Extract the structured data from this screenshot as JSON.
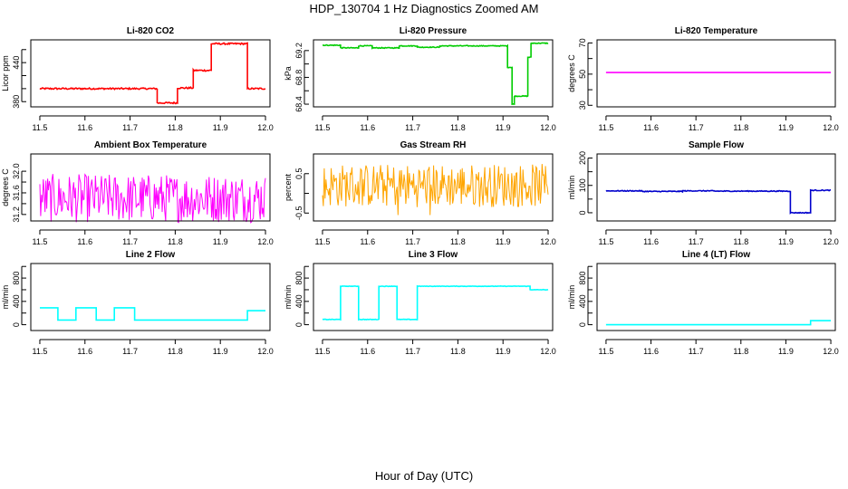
{
  "page": {
    "title": "HDP_130704  1 Hz Diagnostics Zoomed AM",
    "x_title": "Hour of Day (UTC)"
  },
  "chart_data": [
    {
      "id": "co2",
      "type": "line",
      "title": "Li-820 CO2",
      "ylabel": "Licor ppm",
      "color": "#ff0000",
      "xlim": [
        11.48,
        12.01
      ],
      "ylim": [
        372,
        475
      ],
      "x_ticks": [
        11.5,
        11.6,
        11.7,
        11.8,
        11.9,
        12.0
      ],
      "x_tick_labels": [
        "11.5",
        "11.6",
        "11.7",
        "11.8",
        "11.9",
        "12.0"
      ],
      "y_ticks": [
        380,
        400,
        420,
        440,
        460
      ],
      "y_tick_labels": [
        "380",
        "",
        "",
        "440",
        ""
      ],
      "noise": 1.2,
      "segments": [
        [
          11.5,
          11.76,
          400
        ],
        [
          11.76,
          11.805,
          378
        ],
        [
          11.805,
          11.84,
          401
        ],
        [
          11.84,
          11.88,
          428
        ],
        [
          11.88,
          11.96,
          469
        ],
        [
          11.96,
          12.0,
          400
        ]
      ]
    },
    {
      "id": "pressure",
      "type": "line",
      "title": "Li-820 Pressure",
      "ylabel": "kPa",
      "color": "#00cc00",
      "xlim": [
        11.48,
        12.01
      ],
      "ylim": [
        68.36,
        69.36
      ],
      "x_ticks": [
        11.5,
        11.6,
        11.7,
        11.8,
        11.9,
        12.0
      ],
      "x_tick_labels": [
        "11.5",
        "11.6",
        "11.7",
        "11.8",
        "11.9",
        "12.0"
      ],
      "y_ticks": [
        68.4,
        68.6,
        68.8,
        69.0,
        69.2
      ],
      "y_tick_labels": [
        "68.4",
        "",
        "68.8",
        "",
        "69.2"
      ],
      "noise": 0.006,
      "segments": [
        [
          11.5,
          11.54,
          69.28
        ],
        [
          11.54,
          11.58,
          69.24
        ],
        [
          11.58,
          11.61,
          69.27
        ],
        [
          11.61,
          11.67,
          69.24
        ],
        [
          11.67,
          11.71,
          69.27
        ],
        [
          11.71,
          11.76,
          69.25
        ],
        [
          11.76,
          11.91,
          69.27
        ],
        [
          11.91,
          11.92,
          68.95
        ],
        [
          11.92,
          11.925,
          68.4
        ],
        [
          11.925,
          11.955,
          68.52
        ],
        [
          11.955,
          11.962,
          69.1
        ],
        [
          11.962,
          12.0,
          69.31
        ]
      ]
    },
    {
      "id": "licor-temp",
      "type": "line",
      "title": "Li-820 Temperature",
      "ylabel": "degrees C",
      "color": "#ff00ff",
      "xlim": [
        11.48,
        12.01
      ],
      "ylim": [
        29,
        72
      ],
      "x_ticks": [
        11.5,
        11.6,
        11.7,
        11.8,
        11.9,
        12.0
      ],
      "x_tick_labels": [
        "11.5",
        "11.6",
        "11.7",
        "11.8",
        "11.9",
        "12.0"
      ],
      "y_ticks": [
        30,
        40,
        50,
        60,
        70
      ],
      "y_tick_labels": [
        "30",
        "",
        "50",
        "",
        "70"
      ],
      "noise": 0,
      "segments": [
        [
          11.5,
          12.0,
          51
        ]
      ]
    },
    {
      "id": "ambient-temp",
      "type": "line",
      "title": "Ambient Box Temperature",
      "ylabel": "degrees C",
      "color": "#ff00ff",
      "xlim": [
        11.48,
        12.01
      ],
      "ylim": [
        31.08,
        32.32
      ],
      "x_ticks": [
        11.5,
        11.6,
        11.7,
        11.8,
        11.9,
        12.0
      ],
      "x_tick_labels": [
        "11.5",
        "11.6",
        "11.7",
        "11.8",
        "11.9",
        "12.0"
      ],
      "y_ticks": [
        31.2,
        31.4,
        31.6,
        31.8,
        32.0
      ],
      "y_tick_labels": [
        "31.2",
        "",
        "31.6",
        "",
        "32.0"
      ],
      "noise": 0,
      "osc": [
        31.5,
        0.45
      ],
      "segments": [
        [
          11.5,
          12.0,
          31.5
        ]
      ]
    },
    {
      "id": "gas-rh",
      "type": "line",
      "title": "Gas Stream RH",
      "ylabel": "percent",
      "color": "#ffa500",
      "xlim": [
        11.48,
        12.01
      ],
      "ylim": [
        -0.7,
        1.0
      ],
      "x_ticks": [
        11.5,
        11.6,
        11.7,
        11.8,
        11.9,
        12.0
      ],
      "x_tick_labels": [
        "11.5",
        "11.6",
        "11.7",
        "11.8",
        "11.9",
        "12.0"
      ],
      "y_ticks": [
        -0.5,
        0.0,
        0.5
      ],
      "y_tick_labels": [
        "-0.5",
        "",
        "0.5"
      ],
      "noise": 0,
      "rh": true,
      "segments": [
        [
          11.5,
          12.0,
          0.2
        ]
      ]
    },
    {
      "id": "sample-flow",
      "type": "line",
      "title": "Sample Flow",
      "ylabel": "ml/min",
      "color": "#0000cc",
      "xlim": [
        11.48,
        12.01
      ],
      "ylim": [
        -30,
        215
      ],
      "x_ticks": [
        11.5,
        11.6,
        11.7,
        11.8,
        11.9,
        12.0
      ],
      "x_tick_labels": [
        "11.5",
        "11.6",
        "11.7",
        "11.8",
        "11.9",
        "12.0"
      ],
      "y_ticks": [
        0,
        50,
        100,
        150,
        200
      ],
      "y_tick_labels": [
        "0",
        "",
        "100",
        "",
        "200"
      ],
      "noise": 1.5,
      "segments": [
        [
          11.5,
          11.58,
          80
        ],
        [
          11.58,
          11.67,
          78
        ],
        [
          11.67,
          11.74,
          80
        ],
        [
          11.74,
          11.91,
          79
        ],
        [
          11.91,
          11.955,
          0
        ],
        [
          11.955,
          12.0,
          82
        ]
      ]
    },
    {
      "id": "line2-flow",
      "type": "line",
      "title": "Line 2 Flow",
      "ylabel": "ml/min",
      "color": "#00ffff",
      "xlim": [
        11.48,
        12.01
      ],
      "ylim": [
        -100,
        1050
      ],
      "x_ticks": [
        11.5,
        11.6,
        11.7,
        11.8,
        11.9,
        12.0
      ],
      "x_tick_labels": [
        "11.5",
        "11.6",
        "11.7",
        "11.8",
        "11.9",
        "12.0"
      ],
      "y_ticks": [
        0,
        200,
        400,
        600,
        800,
        1000
      ],
      "y_tick_labels": [
        "0",
        "",
        "400",
        "",
        "800",
        ""
      ],
      "noise": 0,
      "segments": [
        [
          11.5,
          11.54,
          290
        ],
        [
          11.54,
          11.58,
          80
        ],
        [
          11.58,
          11.625,
          290
        ],
        [
          11.625,
          11.665,
          80
        ],
        [
          11.665,
          11.71,
          290
        ],
        [
          11.71,
          11.96,
          80
        ],
        [
          11.96,
          12.0,
          240
        ]
      ]
    },
    {
      "id": "line3-flow",
      "type": "line",
      "title": "Line 3 Flow",
      "ylabel": "ml/min",
      "color": "#00ffff",
      "xlim": [
        11.48,
        12.01
      ],
      "ylim": [
        -100,
        1050
      ],
      "x_ticks": [
        11.5,
        11.6,
        11.7,
        11.8,
        11.9,
        12.0
      ],
      "x_tick_labels": [
        "11.5",
        "11.6",
        "11.7",
        "11.8",
        "11.9",
        "12.0"
      ],
      "y_ticks": [
        0,
        200,
        400,
        600,
        800,
        1000
      ],
      "y_tick_labels": [
        "0",
        "",
        "400",
        "",
        "800",
        ""
      ],
      "noise": 4,
      "segments": [
        [
          11.5,
          11.54,
          90
        ],
        [
          11.54,
          11.58,
          660
        ],
        [
          11.58,
          11.625,
          90
        ],
        [
          11.625,
          11.665,
          660
        ],
        [
          11.665,
          11.71,
          90
        ],
        [
          11.71,
          11.96,
          660
        ],
        [
          11.96,
          12.0,
          600
        ]
      ]
    },
    {
      "id": "line4-flow",
      "type": "line",
      "title": "Line 4 (LT) Flow",
      "ylabel": "ml/min",
      "color": "#00ffff",
      "xlim": [
        11.48,
        12.01
      ],
      "ylim": [
        -100,
        1050
      ],
      "x_ticks": [
        11.5,
        11.6,
        11.7,
        11.8,
        11.9,
        12.0
      ],
      "x_tick_labels": [
        "11.5",
        "11.6",
        "11.7",
        "11.8",
        "11.9",
        "12.0"
      ],
      "y_ticks": [
        0,
        200,
        400,
        600,
        800,
        1000
      ],
      "y_tick_labels": [
        "0",
        "",
        "400",
        "",
        "800",
        ""
      ],
      "noise": 0,
      "segments": [
        [
          11.5,
          11.955,
          0
        ],
        [
          11.955,
          12.0,
          70
        ]
      ]
    }
  ]
}
